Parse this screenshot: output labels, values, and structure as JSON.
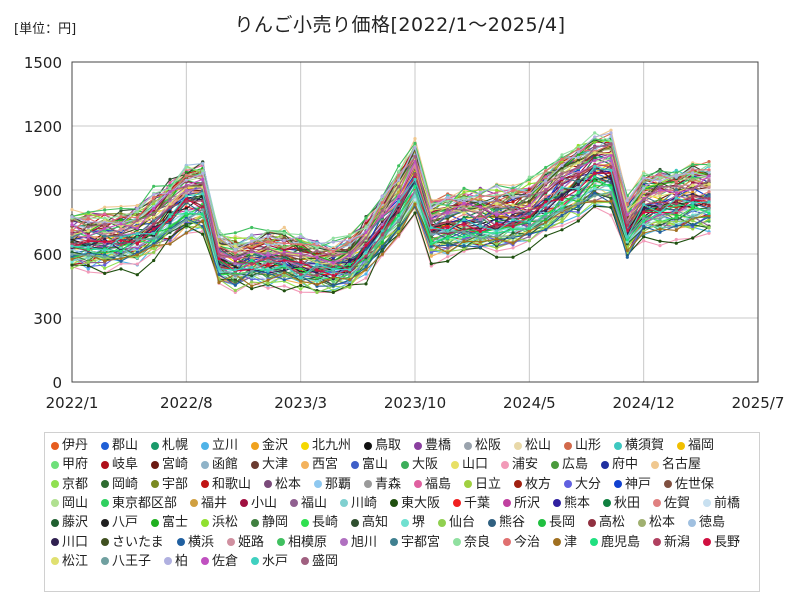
{
  "chart_data": {
    "type": "line",
    "title": "りんご小売り価格[2022/1～2025/4]",
    "unit_label": "[単位：円]",
    "ylim": [
      0,
      1500
    ],
    "y_ticks": [
      "0",
      "300",
      "600",
      "900",
      "1200",
      "1500"
    ],
    "x_ticks": [
      "2022/1",
      "2022/8",
      "2023/3",
      "2023/10",
      "2024/5",
      "2024/12",
      "2025/7"
    ],
    "grid": true,
    "legend_position": "bottom",
    "month_count": 40,
    "band_mean": [
      660,
      665,
      670,
      670,
      690,
      740,
      800,
      860,
      870,
      580,
      560,
      570,
      580,
      580,
      560,
      545,
      540,
      560,
      640,
      740,
      840,
      960,
      720,
      740,
      755,
      760,
      760,
      770,
      790,
      850,
      900,
      940,
      990,
      1000,
      720,
      820,
      840,
      850,
      860,
      870
    ],
    "series": [
      {
        "name": "伊丹",
        "color": "#e65c1e"
      },
      {
        "name": "郡山",
        "color": "#1f5fd6"
      },
      {
        "name": "札幌",
        "color": "#1a9a6a"
      },
      {
        "name": "立川",
        "color": "#4fb3e8"
      },
      {
        "name": "金沢",
        "color": "#f0a21e"
      },
      {
        "name": "北九州",
        "color": "#f5d800"
      },
      {
        "name": "鳥取",
        "color": "#111111"
      },
      {
        "name": "豊橋",
        "color": "#8a3f9f"
      },
      {
        "name": "松阪",
        "color": "#9aa3ad"
      },
      {
        "name": "松山",
        "color": "#e8d8a8"
      },
      {
        "name": "山形",
        "color": "#d2694a"
      },
      {
        "name": "横須賀",
        "color": "#3ec8c0"
      },
      {
        "name": "福岡",
        "color": "#f1bf00"
      },
      {
        "name": "甲府",
        "color": "#6ee07a"
      },
      {
        "name": "岐阜",
        "color": "#b0101a"
      },
      {
        "name": "宮崎",
        "color": "#6b1a12"
      },
      {
        "name": "函館",
        "color": "#8fb3c8"
      },
      {
        "name": "大津",
        "color": "#6a3b30"
      },
      {
        "name": "西宮",
        "color": "#f3b25c"
      },
      {
        "name": "富山",
        "color": "#3f5fc8"
      },
      {
        "name": "大阪",
        "color": "#3cae5a"
      },
      {
        "name": "山口",
        "color": "#e8e066"
      },
      {
        "name": "浦安",
        "color": "#f29ab8"
      },
      {
        "name": "広島",
        "color": "#4a9a3c"
      },
      {
        "name": "府中",
        "color": "#2030a0"
      },
      {
        "name": "名古屋",
        "color": "#f0c890"
      },
      {
        "name": "京都",
        "color": "#90e050"
      },
      {
        "name": "岡崎",
        "color": "#2e6b30"
      },
      {
        "name": "宇部",
        "color": "#7a8a22"
      },
      {
        "name": "和歌山",
        "color": "#c01414"
      },
      {
        "name": "松本",
        "color": "#7a4a7a"
      },
      {
        "name": "那覇",
        "color": "#8ec8f0"
      },
      {
        "name": "青森",
        "color": "#9a9a9a"
      },
      {
        "name": "福島",
        "color": "#e060a0"
      },
      {
        "name": "日立",
        "color": "#a0d040"
      },
      {
        "name": "枚方",
        "color": "#a02010"
      },
      {
        "name": "大分",
        "color": "#6060e0"
      },
      {
        "name": "神戸",
        "color": "#1040d0"
      },
      {
        "name": "佐世保",
        "color": "#805040"
      },
      {
        "name": "岡山",
        "color": "#b0e090"
      },
      {
        "name": "東京都区部",
        "color": "#30d060"
      },
      {
        "name": "福井",
        "color": "#d0a040"
      },
      {
        "name": "小山",
        "color": "#a01040"
      },
      {
        "name": "福山",
        "color": "#906090"
      },
      {
        "name": "川崎",
        "color": "#80d0d0"
      },
      {
        "name": "東大阪",
        "color": "#205010"
      },
      {
        "name": "千葉",
        "color": "#f02020"
      },
      {
        "name": "所沢",
        "color": "#c040a0"
      },
      {
        "name": "熊本",
        "color": "#3020a0"
      },
      {
        "name": "秋田",
        "color": "#108040"
      },
      {
        "name": "佐賀",
        "color": "#e08080"
      },
      {
        "name": "前橋",
        "color": "#c8e0f0"
      },
      {
        "name": "藤沢",
        "color": "#206030"
      },
      {
        "name": "八戸",
        "color": "#202020"
      },
      {
        "name": "富士",
        "color": "#20b020"
      },
      {
        "name": "浜松",
        "color": "#90e030"
      },
      {
        "name": "静岡",
        "color": "#408040"
      },
      {
        "name": "長崎",
        "color": "#30e050"
      },
      {
        "name": "高知",
        "color": "#305030"
      },
      {
        "name": "堺",
        "color": "#70e0d0"
      },
      {
        "name": "仙台",
        "color": "#90d050"
      },
      {
        "name": "熊谷",
        "color": "#306080"
      },
      {
        "name": "長岡",
        "color": "#20c040"
      },
      {
        "name": "高松",
        "color": "#903040"
      },
      {
        "name": "松本",
        "color": "#a0b070"
      },
      {
        "name": "徳島",
        "color": "#a0c0e0"
      },
      {
        "name": "川口",
        "color": "#302050"
      },
      {
        "name": "さいたま",
        "color": "#405020"
      },
      {
        "name": "横浜",
        "color": "#2060a0"
      },
      {
        "name": "姫路",
        "color": "#d090a0"
      },
      {
        "name": "相模原",
        "color": "#40c060"
      },
      {
        "name": "旭川",
        "color": "#b070c0"
      },
      {
        "name": "宇都宮",
        "color": "#408090"
      },
      {
        "name": "奈良",
        "color": "#90e0a0"
      },
      {
        "name": "今治",
        "color": "#e07070"
      },
      {
        "name": "津",
        "color": "#a07020"
      },
      {
        "name": "鹿児島",
        "color": "#20e080"
      },
      {
        "name": "新潟",
        "color": "#b04060"
      },
      {
        "name": "長野",
        "color": "#d01040"
      },
      {
        "name": "松江",
        "color": "#e0e070"
      },
      {
        "name": "八王子",
        "color": "#70a0a0"
      },
      {
        "name": "柏",
        "color": "#b0b0e0"
      },
      {
        "name": "佐倉",
        "color": "#c050c0"
      },
      {
        "name": "水戸",
        "color": "#40d0c0"
      },
      {
        "name": "盛岡",
        "color": "#a06080"
      }
    ]
  }
}
